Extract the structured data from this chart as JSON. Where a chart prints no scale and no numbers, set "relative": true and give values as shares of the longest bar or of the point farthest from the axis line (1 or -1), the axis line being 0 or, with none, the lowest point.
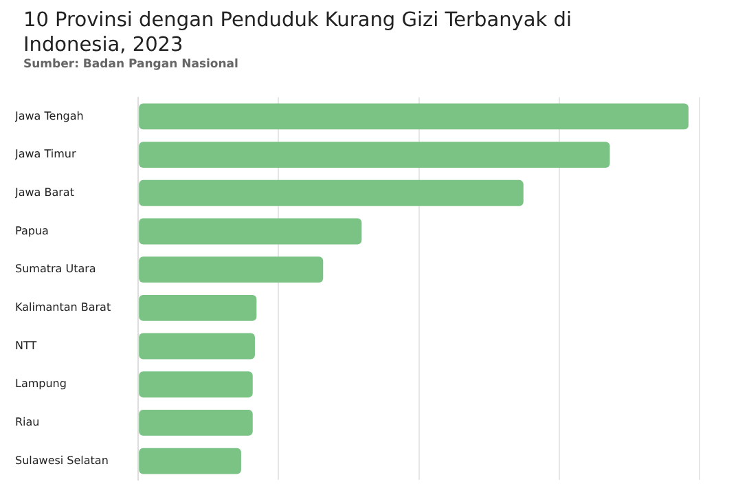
{
  "chart_data": {
    "type": "bar",
    "orientation": "horizontal",
    "relative": true,
    "title": "10 Provinsi dengan Penduduk Kurang Gizi Terbanyak di Indonesia, 2023",
    "annotations": [
      "Sumber: Badan Pangan Nasional"
    ],
    "categories": [
      "Jawa Tengah",
      "Jawa Timur",
      "Jawa Barat",
      "Papua",
      "Sumatra Utara",
      "Kalimantan Barat",
      "NTT",
      "Lampung",
      "Riau",
      "Sulawesi Selatan"
    ],
    "values": [
      1,
      0.857,
      0.7,
      0.406,
      0.336,
      0.215,
      0.212,
      0.208,
      0.208,
      0.187
    ],
    "color": "#7bc285",
    "grid": "x",
    "legend": false
  }
}
